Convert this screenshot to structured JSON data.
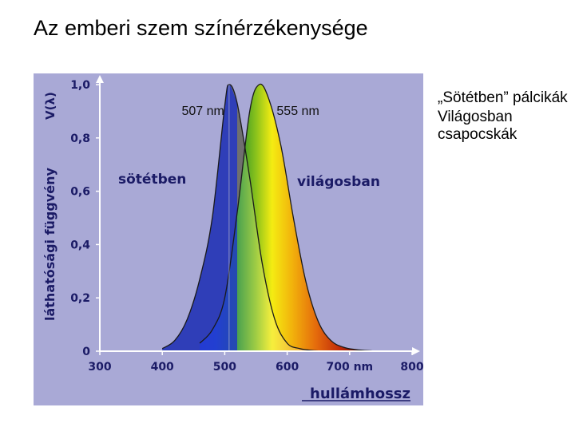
{
  "slide": {
    "title": "Az emberi szem színérzékenysége",
    "notes": [
      "„Sötétben” pálcikák",
      "Világosban csapocskák"
    ]
  },
  "colors": {
    "figure_background": "#a9a9d6",
    "scotopic_fill": "#6f6f6f",
    "curve_stroke": "#1a1a1a",
    "axis": "#ffffff",
    "label": "#1b1b66"
  },
  "chart_data": {
    "type": "area",
    "ylabel": "láthatósági függvény",
    "ylabel_symbol": "V(λ)",
    "xlabel": "hullámhossz",
    "xlim": [
      300,
      800
    ],
    "ylim": [
      0,
      1.0
    ],
    "xticks": [
      "300",
      "400",
      "500",
      "600",
      "700 nm",
      "800"
    ],
    "xtick_values": [
      300,
      400,
      500,
      600,
      700,
      800
    ],
    "yticks": [
      "0",
      "0,2",
      "0,4",
      "0,6",
      "0,8",
      "1,0"
    ],
    "ytick_values": [
      0,
      0.2,
      0.4,
      0.6,
      0.8,
      1.0
    ],
    "grid": false,
    "series": [
      {
        "name": "sötétben",
        "peak_label": "507 nm",
        "peak": 507,
        "x": [
          400,
          420,
          440,
          460,
          480,
          500,
          507,
          520,
          540,
          560,
          580,
          600,
          620,
          640,
          660
        ],
        "values": [
          0.01,
          0.04,
          0.12,
          0.27,
          0.5,
          0.92,
          1.0,
          0.93,
          0.65,
          0.33,
          0.12,
          0.03,
          0.01,
          0.003,
          0
        ]
      },
      {
        "name": "világosban",
        "peak_label": "555 nm",
        "peak": 555,
        "x": [
          460,
          480,
          500,
          520,
          540,
          555,
          570,
          590,
          610,
          630,
          650,
          670,
          690,
          710,
          730,
          750
        ],
        "values": [
          0.03,
          0.08,
          0.2,
          0.52,
          0.9,
          1.0,
          0.95,
          0.77,
          0.5,
          0.26,
          0.11,
          0.04,
          0.015,
          0.006,
          0.002,
          0
        ]
      }
    ]
  }
}
